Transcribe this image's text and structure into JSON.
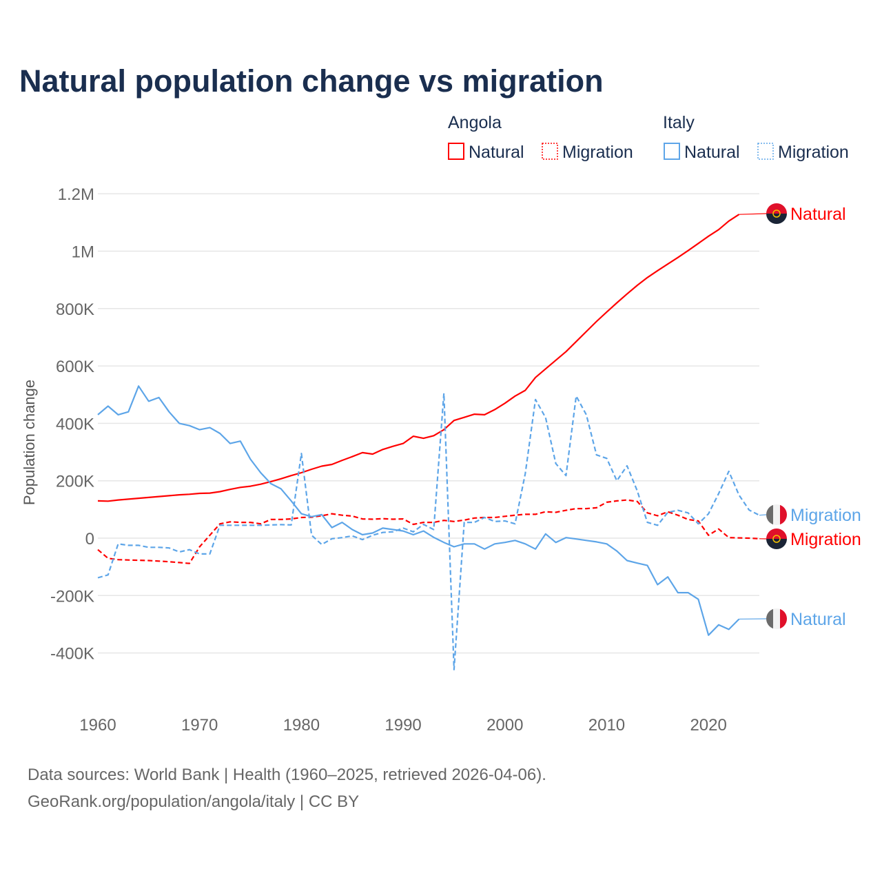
{
  "chart_data": {
    "type": "line",
    "title": "Natural population change vs migration",
    "ylabel": "Population change",
    "xlabel": "",
    "xlim": [
      1960,
      2025
    ],
    "ylim": [
      -500000,
      1200000
    ],
    "x_ticks": [
      "1960",
      "1970",
      "1980",
      "1990",
      "2000",
      "2010",
      "2020"
    ],
    "y_ticks": [
      {
        "value": 1200000,
        "label": "1.2M"
      },
      {
        "value": 1000000,
        "label": "1M"
      },
      {
        "value": 800000,
        "label": "800K"
      },
      {
        "value": 600000,
        "label": "600K"
      },
      {
        "value": 400000,
        "label": "400K"
      },
      {
        "value": 200000,
        "label": "200K"
      },
      {
        "value": 0,
        "label": "0"
      },
      {
        "value": -200000,
        "label": "-200K"
      },
      {
        "value": -400000,
        "label": "-400K"
      }
    ],
    "grid": true,
    "legend": {
      "placement": "top-right",
      "groups": [
        {
          "name": "Angola",
          "items": [
            "Natural",
            "Migration"
          ]
        },
        {
          "name": "Italy",
          "items": [
            "Natural",
            "Migration"
          ]
        }
      ]
    },
    "colors": {
      "Angola": "#ff0000",
      "Italy": "#5da5e8"
    },
    "series": [
      {
        "name": "Natural",
        "country": "Angola",
        "style": "solid",
        "end_label": "Natural",
        "x": [
          1960,
          1961,
          1962,
          1963,
          1964,
          1965,
          1966,
          1967,
          1968,
          1969,
          1970,
          1971,
          1972,
          1973,
          1974,
          1975,
          1976,
          1977,
          1978,
          1979,
          1980,
          1981,
          1982,
          1983,
          1984,
          1985,
          1986,
          1987,
          1988,
          1989,
          1990,
          1991,
          1992,
          1993,
          1994,
          1995,
          1996,
          1997,
          1998,
          1999,
          2000,
          2001,
          2002,
          2003,
          2004,
          2005,
          2006,
          2007,
          2008,
          2009,
          2010,
          2011,
          2012,
          2013,
          2014,
          2015,
          2016,
          2017,
          2018,
          2019,
          2020,
          2021,
          2022,
          2023
        ],
        "values": [
          130000,
          129000,
          133000,
          136000,
          139000,
          142000,
          145000,
          148000,
          151000,
          153000,
          156000,
          157000,
          162000,
          170000,
          177000,
          181000,
          188000,
          197000,
          207000,
          218000,
          228000,
          240000,
          251000,
          257000,
          271000,
          284000,
          298000,
          293000,
          309000,
          320000,
          330000,
          355000,
          348000,
          357000,
          378000,
          410000,
          421000,
          432000,
          430000,
          448000,
          470000,
          495000,
          515000,
          560000,
          590000,
          620000,
          650000,
          685000,
          720000,
          755000,
          788000,
          820000,
          851000,
          881000,
          908000,
          932000,
          955000,
          978000,
          1002000,
          1027000,
          1052000,
          1075000,
          1105000,
          1128000
        ]
      },
      {
        "name": "Migration",
        "country": "Angola",
        "style": "dashed",
        "end_label": "Migration",
        "x": [
          1960,
          1961,
          1962,
          1963,
          1964,
          1965,
          1966,
          1967,
          1968,
          1969,
          1970,
          1971,
          1972,
          1973,
          1974,
          1975,
          1976,
          1977,
          1978,
          1979,
          1980,
          1981,
          1982,
          1983,
          1984,
          1985,
          1986,
          1987,
          1988,
          1989,
          1990,
          1991,
          1992,
          1993,
          1994,
          1995,
          1996,
          1997,
          1998,
          1999,
          2000,
          2001,
          2002,
          2003,
          2004,
          2005,
          2006,
          2007,
          2008,
          2009,
          2010,
          2011,
          2012,
          2013,
          2014,
          2015,
          2016,
          2017,
          2018,
          2019,
          2020,
          2021,
          2022,
          2023,
          2024,
          2025
        ],
        "values": [
          -40000,
          -70000,
          -75000,
          -76000,
          -77000,
          -78000,
          -80000,
          -82000,
          -85000,
          -88000,
          -30000,
          10000,
          50000,
          57000,
          55000,
          55000,
          50000,
          65000,
          65000,
          67000,
          72000,
          73000,
          78000,
          85000,
          80000,
          77000,
          67000,
          66000,
          68000,
          66000,
          67000,
          48000,
          55000,
          55000,
          62000,
          58000,
          63000,
          70000,
          72000,
          72000,
          76000,
          80000,
          83000,
          83000,
          92000,
          90000,
          97000,
          103000,
          103000,
          106000,
          125000,
          130000,
          133000,
          128000,
          88000,
          78000,
          92000,
          80000,
          65000,
          60000,
          10000,
          32000,
          2000,
          1000,
          0,
          -2000
        ]
      },
      {
        "name": "Natural",
        "country": "Italy",
        "style": "solid",
        "end_label": "Natural",
        "x": [
          1960,
          1961,
          1962,
          1963,
          1964,
          1965,
          1966,
          1967,
          1968,
          1969,
          1970,
          1971,
          1972,
          1973,
          1974,
          1975,
          1976,
          1977,
          1978,
          1979,
          1980,
          1981,
          1982,
          1983,
          1984,
          1985,
          1986,
          1987,
          1988,
          1989,
          1990,
          1991,
          1992,
          1993,
          1994,
          1995,
          1996,
          1997,
          1998,
          1999,
          2000,
          2001,
          2002,
          2003,
          2004,
          2005,
          2006,
          2007,
          2008,
          2009,
          2010,
          2011,
          2012,
          2013,
          2014,
          2015,
          2016,
          2017,
          2018,
          2019,
          2020,
          2021,
          2022,
          2023
        ],
        "values": [
          430000,
          460000,
          430000,
          440000,
          530000,
          477000,
          490000,
          440000,
          400000,
          392000,
          378000,
          385000,
          365000,
          330000,
          338000,
          275000,
          228000,
          190000,
          172000,
          130000,
          85000,
          75000,
          82000,
          37000,
          55000,
          30000,
          12000,
          18000,
          35000,
          30000,
          25000,
          12000,
          25000,
          3000,
          -15000,
          -30000,
          -20000,
          -20000,
          -38000,
          -20000,
          -15000,
          -8000,
          -20000,
          -38000,
          15000,
          -15000,
          2000,
          -3000,
          -8000,
          -13000,
          -20000,
          -45000,
          -78000,
          -87000,
          -95000,
          -162000,
          -135000,
          -190000,
          -190000,
          -213000,
          -338000,
          -302000,
          -318000,
          -282000
        ]
      },
      {
        "name": "Migration",
        "country": "Italy",
        "style": "dashed",
        "end_label": "Migration",
        "x": [
          1960,
          1961,
          1962,
          1963,
          1964,
          1965,
          1966,
          1967,
          1968,
          1969,
          1970,
          1971,
          1972,
          1973,
          1974,
          1975,
          1976,
          1977,
          1978,
          1979,
          1980,
          1981,
          1982,
          1983,
          1984,
          1985,
          1986,
          1987,
          1988,
          1989,
          1990,
          1991,
          1992,
          1993,
          1994,
          1995,
          1996,
          1997,
          1998,
          1999,
          2000,
          2001,
          2002,
          2003,
          2004,
          2005,
          2006,
          2007,
          2008,
          2009,
          2010,
          2011,
          2012,
          2013,
          2014,
          2015,
          2016,
          2017,
          2018,
          2019,
          2020,
          2021,
          2022,
          2023,
          2024,
          2025
        ],
        "values": [
          -138000,
          -128000,
          -20000,
          -25000,
          -25000,
          -32000,
          -32000,
          -34000,
          -48000,
          -40000,
          -55000,
          -55000,
          45000,
          45000,
          45000,
          45000,
          45000,
          46000,
          47000,
          46000,
          295000,
          10000,
          -22000,
          -2000,
          2000,
          8000,
          -5000,
          10000,
          20000,
          22000,
          35000,
          22000,
          48000,
          30000,
          505000,
          -458000,
          55000,
          55000,
          72000,
          58000,
          60000,
          50000,
          225000,
          483000,
          420000,
          260000,
          218000,
          495000,
          430000,
          290000,
          278000,
          200000,
          252000,
          165000,
          55000,
          45000,
          90000,
          97000,
          88000,
          50000,
          85000,
          155000,
          233000,
          150000,
          98000,
          80000
        ]
      }
    ]
  },
  "footer": {
    "source": "Data sources: World Bank | Health (1960–2025, retrieved 2026-04-06).",
    "url": "GeoRank.org/population/angola/italy | CC BY"
  }
}
